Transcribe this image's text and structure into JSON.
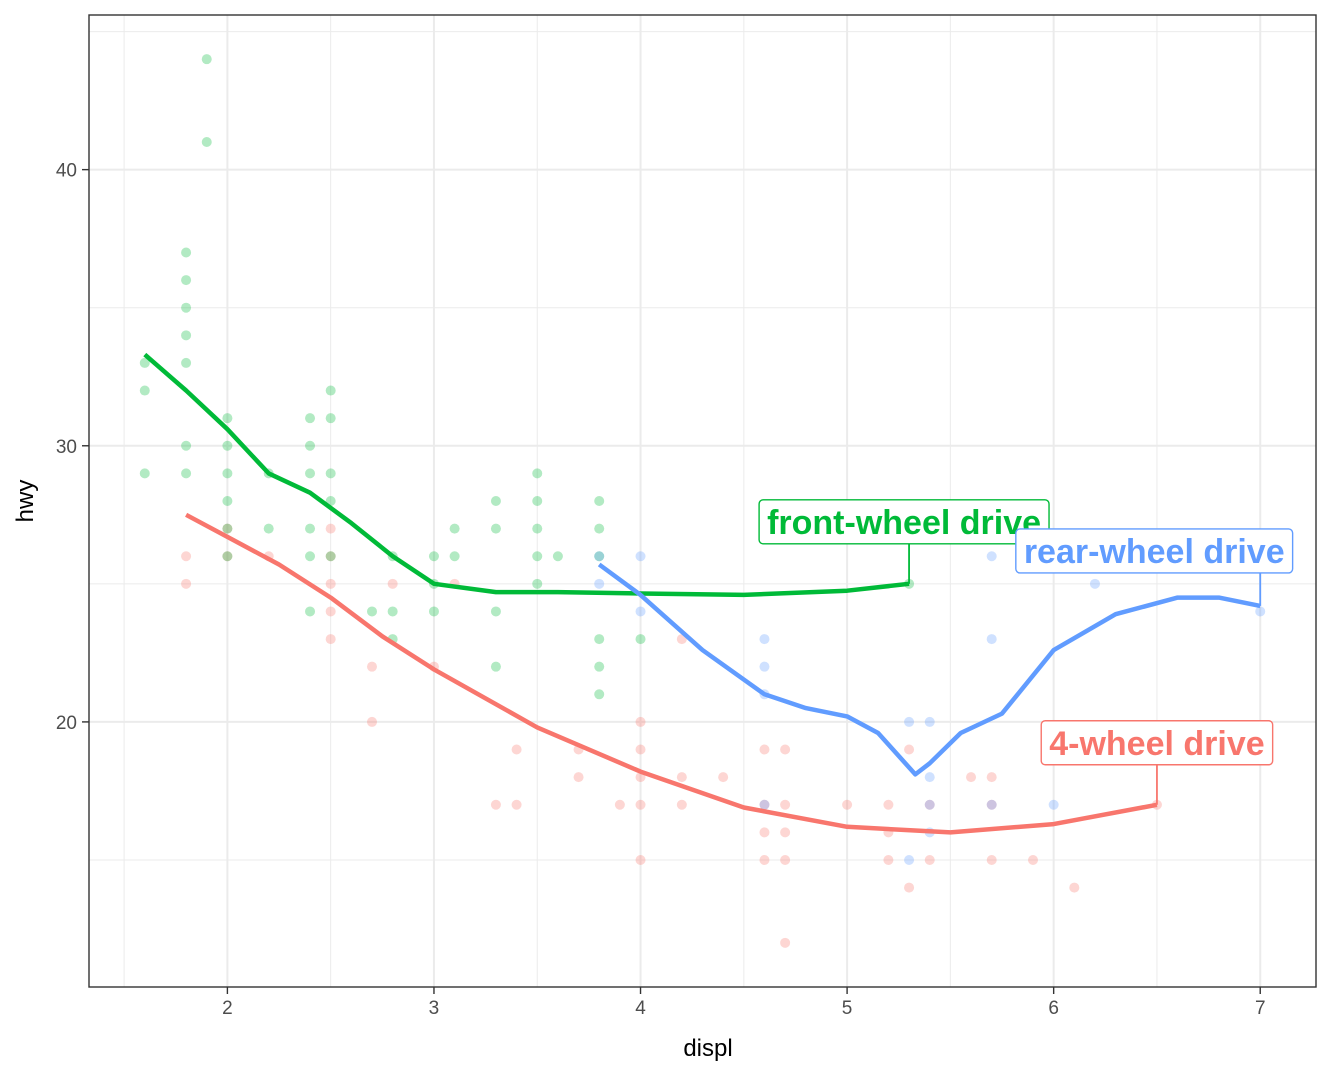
{
  "chart_data": {
    "type": "scatter",
    "xlabel": "displ",
    "ylabel": "hwy",
    "xlim": [
      1.33,
      7.27
    ],
    "ylim": [
      10.4,
      45.6
    ],
    "x_ticks": [
      2,
      3,
      4,
      5,
      6,
      7
    ],
    "y_ticks": [
      20,
      30,
      40
    ],
    "grid": true,
    "legend": "none",
    "series": [
      {
        "name": "4-wheel drive",
        "color": "#F8766D",
        "points": [
          [
            1.8,
            26
          ],
          [
            1.8,
            25
          ],
          [
            2.0,
            27
          ],
          [
            2.0,
            26
          ],
          [
            2.2,
            26
          ],
          [
            2.5,
            27
          ],
          [
            2.5,
            26
          ],
          [
            2.5,
            25
          ],
          [
            2.5,
            24
          ],
          [
            2.5,
            23
          ],
          [
            2.7,
            22
          ],
          [
            2.7,
            20
          ],
          [
            2.8,
            25
          ],
          [
            3.0,
            22
          ],
          [
            3.1,
            25
          ],
          [
            3.3,
            17
          ],
          [
            3.4,
            19
          ],
          [
            3.4,
            17
          ],
          [
            3.7,
            19
          ],
          [
            3.7,
            18
          ],
          [
            3.9,
            17
          ],
          [
            4.0,
            20
          ],
          [
            4.0,
            19
          ],
          [
            4.0,
            18
          ],
          [
            4.0,
            17
          ],
          [
            4.0,
            15
          ],
          [
            4.2,
            23
          ],
          [
            4.2,
            18
          ],
          [
            4.2,
            17
          ],
          [
            4.4,
            18
          ],
          [
            4.6,
            19
          ],
          [
            4.6,
            17
          ],
          [
            4.6,
            16
          ],
          [
            4.6,
            15
          ],
          [
            4.7,
            19
          ],
          [
            4.7,
            17
          ],
          [
            4.7,
            16
          ],
          [
            4.7,
            15
          ],
          [
            4.7,
            12
          ],
          [
            5.0,
            17
          ],
          [
            5.2,
            17
          ],
          [
            5.2,
            16
          ],
          [
            5.2,
            15
          ],
          [
            5.3,
            19
          ],
          [
            5.3,
            14
          ],
          [
            5.4,
            17
          ],
          [
            5.4,
            15
          ],
          [
            5.6,
            18
          ],
          [
            5.7,
            18
          ],
          [
            5.7,
            17
          ],
          [
            5.7,
            15
          ],
          [
            5.9,
            15
          ],
          [
            6.1,
            14
          ],
          [
            6.5,
            17
          ]
        ],
        "smooth": [
          [
            1.8,
            27.5
          ],
          [
            2.0,
            26.7
          ],
          [
            2.25,
            25.7
          ],
          [
            2.5,
            24.5
          ],
          [
            2.75,
            23.1
          ],
          [
            3.0,
            21.9
          ],
          [
            3.5,
            19.8
          ],
          [
            4.0,
            18.2
          ],
          [
            4.5,
            16.9
          ],
          [
            5.0,
            16.2
          ],
          [
            5.5,
            16.0
          ],
          [
            6.0,
            16.3
          ],
          [
            6.5,
            17.0
          ]
        ],
        "label": {
          "text": "4-wheel drive",
          "x": 6.5,
          "y": 17.0
        }
      },
      {
        "name": "front-wheel drive",
        "color": "#00BA38",
        "points": [
          [
            1.6,
            33
          ],
          [
            1.6,
            32
          ],
          [
            1.6,
            29
          ],
          [
            1.8,
            37
          ],
          [
            1.8,
            36
          ],
          [
            1.8,
            35
          ],
          [
            1.8,
            34
          ],
          [
            1.8,
            33
          ],
          [
            1.8,
            30
          ],
          [
            1.8,
            29
          ],
          [
            1.9,
            44
          ],
          [
            1.9,
            41
          ],
          [
            2.0,
            31
          ],
          [
            2.0,
            30
          ],
          [
            2.0,
            29
          ],
          [
            2.0,
            28
          ],
          [
            2.0,
            27
          ],
          [
            2.0,
            26
          ],
          [
            2.2,
            29
          ],
          [
            2.2,
            27
          ],
          [
            2.4,
            31
          ],
          [
            2.4,
            30
          ],
          [
            2.4,
            29
          ],
          [
            2.4,
            27
          ],
          [
            2.4,
            26
          ],
          [
            2.4,
            24
          ],
          [
            2.5,
            32
          ],
          [
            2.5,
            31
          ],
          [
            2.5,
            29
          ],
          [
            2.5,
            28
          ],
          [
            2.5,
            26
          ],
          [
            2.7,
            24
          ],
          [
            2.8,
            26
          ],
          [
            2.8,
            24
          ],
          [
            2.8,
            23
          ],
          [
            3.0,
            26
          ],
          [
            3.0,
            25
          ],
          [
            3.0,
            24
          ],
          [
            3.1,
            27
          ],
          [
            3.1,
            26
          ],
          [
            3.3,
            28
          ],
          [
            3.3,
            27
          ],
          [
            3.3,
            24
          ],
          [
            3.3,
            22
          ],
          [
            3.5,
            29
          ],
          [
            3.5,
            28
          ],
          [
            3.5,
            27
          ],
          [
            3.5,
            26
          ],
          [
            3.5,
            25
          ],
          [
            3.6,
            26
          ],
          [
            3.8,
            28
          ],
          [
            3.8,
            27
          ],
          [
            3.8,
            26
          ],
          [
            3.8,
            23
          ],
          [
            3.8,
            22
          ],
          [
            3.8,
            21
          ],
          [
            4.0,
            23
          ],
          [
            5.3,
            25
          ]
        ],
        "smooth": [
          [
            1.6,
            33.3
          ],
          [
            1.8,
            32.0
          ],
          [
            2.0,
            30.6
          ],
          [
            2.2,
            29.0
          ],
          [
            2.4,
            28.3
          ],
          [
            2.6,
            27.2
          ],
          [
            2.8,
            26.0
          ],
          [
            3.0,
            25.0
          ],
          [
            3.3,
            24.7
          ],
          [
            3.6,
            24.7
          ],
          [
            4.0,
            24.65
          ],
          [
            4.5,
            24.6
          ],
          [
            5.0,
            24.75
          ],
          [
            5.3,
            25.0
          ]
        ],
        "label": {
          "text": "front-wheel drive",
          "x": 5.3,
          "y": 25.0
        }
      },
      {
        "name": "rear-wheel drive",
        "color": "#619CFF",
        "points": [
          [
            3.8,
            26
          ],
          [
            3.8,
            25
          ],
          [
            4.0,
            26
          ],
          [
            4.0,
            24
          ],
          [
            4.6,
            23
          ],
          [
            4.6,
            22
          ],
          [
            4.6,
            21
          ],
          [
            4.6,
            17
          ],
          [
            5.3,
            20
          ],
          [
            5.3,
            15
          ],
          [
            5.4,
            20
          ],
          [
            5.4,
            18
          ],
          [
            5.4,
            17
          ],
          [
            5.4,
            16
          ],
          [
            5.7,
            26
          ],
          [
            5.7,
            23
          ],
          [
            5.7,
            17
          ],
          [
            6.0,
            17
          ],
          [
            6.2,
            26
          ],
          [
            6.2,
            25
          ],
          [
            7.0,
            24
          ]
        ],
        "smooth": [
          [
            3.8,
            25.7
          ],
          [
            4.0,
            24.6
          ],
          [
            4.3,
            22.6
          ],
          [
            4.6,
            21.0
          ],
          [
            4.8,
            20.5
          ],
          [
            5.0,
            20.2
          ],
          [
            5.15,
            19.6
          ],
          [
            5.33,
            18.1
          ],
          [
            5.4,
            18.5
          ],
          [
            5.55,
            19.6
          ],
          [
            5.75,
            20.3
          ],
          [
            6.0,
            22.6
          ],
          [
            6.3,
            23.9
          ],
          [
            6.6,
            24.5
          ],
          [
            6.8,
            24.5
          ],
          [
            7.0,
            24.2
          ]
        ],
        "label": {
          "text": "rear-wheel drive",
          "x": 7.0,
          "y": 24.2
        }
      }
    ]
  }
}
